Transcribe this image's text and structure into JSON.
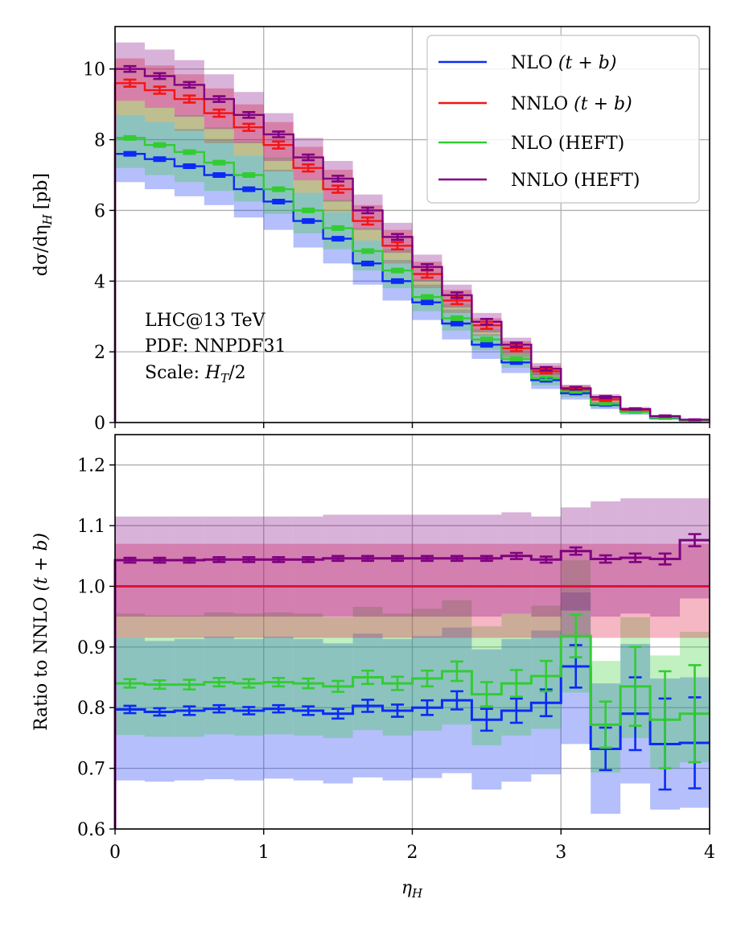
{
  "chart_data": [
    {
      "id": "top",
      "type": "step",
      "ylabel": "dσ/dη",
      "ylabel_sub": "H",
      "ylabel_unit": "[pb]",
      "xlim": [
        0,
        4
      ],
      "ylim": [
        0,
        11.2
      ],
      "yticks": [
        0,
        2,
        4,
        6,
        8,
        10
      ],
      "grid": true,
      "annotation": [
        "LHC@13 TeV",
        "PDF: NNPDF31",
        "Scale: "
      ],
      "annotation_scale_expr": "H",
      "annotation_scale_sub": "T",
      "annotation_scale_tail": "/2",
      "legend_position": "top-right",
      "bin_edges": [
        0,
        0.2,
        0.4,
        0.6,
        0.8,
        1.0,
        1.2,
        1.4,
        1.6,
        1.8,
        2.0,
        2.2,
        2.4,
        2.6,
        2.8,
        3.0,
        3.2,
        3.4,
        3.6,
        3.8,
        4.0
      ],
      "series": [
        {
          "name": "NLO",
          "name_tail": "(t + b)",
          "color": "#0a2bf5",
          "values": [
            7.6,
            7.45,
            7.25,
            7.0,
            6.6,
            6.25,
            5.7,
            5.2,
            4.5,
            4.0,
            3.4,
            2.8,
            2.2,
            1.7,
            1.2,
            0.83,
            0.5,
            0.3,
            0.12,
            0.06
          ],
          "band_lo": [
            6.8,
            6.6,
            6.4,
            6.15,
            5.8,
            5.45,
            4.95,
            4.5,
            3.9,
            3.45,
            2.9,
            2.35,
            1.8,
            1.4,
            0.95,
            0.65,
            0.38,
            0.22,
            0.08,
            0.04
          ],
          "band_hi": [
            8.7,
            8.5,
            8.3,
            8.0,
            7.55,
            7.15,
            6.5,
            5.95,
            5.15,
            4.6,
            3.9,
            3.2,
            2.5,
            1.95,
            1.4,
            0.95,
            0.6,
            0.36,
            0.15,
            0.08
          ],
          "err": [
            0.05,
            0.05,
            0.05,
            0.05,
            0.05,
            0.05,
            0.05,
            0.05,
            0.05,
            0.05,
            0.05,
            0.05,
            0.05,
            0.04,
            0.04,
            0.03,
            0.02,
            0.02,
            0.01,
            0.01
          ]
        },
        {
          "name": "NNLO",
          "name_tail": "(t + b)",
          "color": "#f51414",
          "values": [
            9.6,
            9.4,
            9.15,
            8.75,
            8.35,
            7.85,
            7.2,
            6.6,
            5.7,
            5.0,
            4.2,
            3.45,
            2.75,
            2.1,
            1.45,
            0.93,
            0.65,
            0.35,
            0.16,
            0.07
          ],
          "band_lo": [
            8.7,
            8.5,
            8.25,
            7.9,
            7.55,
            7.1,
            6.5,
            5.95,
            5.15,
            4.5,
            3.8,
            3.1,
            2.45,
            1.85,
            1.25,
            0.8,
            0.55,
            0.3,
            0.13,
            0.05
          ],
          "band_hi": [
            10.3,
            10.1,
            9.85,
            9.45,
            9.0,
            8.5,
            7.8,
            7.15,
            6.15,
            5.45,
            4.55,
            3.75,
            2.95,
            2.3,
            1.6,
            1.05,
            0.72,
            0.4,
            0.18,
            0.09
          ],
          "err": [
            0.1,
            0.1,
            0.1,
            0.1,
            0.1,
            0.1,
            0.1,
            0.1,
            0.1,
            0.1,
            0.1,
            0.1,
            0.1,
            0.08,
            0.06,
            0.05,
            0.04,
            0.03,
            0.02,
            0.01
          ]
        },
        {
          "name": "NLO (HEFT)",
          "name_tail": "",
          "color": "#33cc33",
          "values": [
            8.05,
            7.85,
            7.65,
            7.35,
            7.0,
            6.6,
            6.0,
            5.5,
            4.85,
            4.3,
            3.55,
            2.95,
            2.35,
            1.8,
            1.25,
            0.88,
            0.53,
            0.3,
            0.13,
            0.06
          ],
          "band_lo": [
            7.2,
            7.0,
            6.8,
            6.55,
            6.25,
            5.9,
            5.35,
            4.9,
            4.3,
            3.8,
            3.15,
            2.6,
            2.05,
            1.55,
            1.05,
            0.72,
            0.42,
            0.24,
            0.1,
            0.04
          ],
          "band_hi": [
            9.1,
            8.9,
            8.7,
            8.35,
            7.95,
            7.5,
            6.85,
            6.3,
            5.5,
            4.9,
            4.05,
            3.35,
            2.65,
            2.05,
            1.45,
            1.0,
            0.62,
            0.36,
            0.16,
            0.08
          ],
          "err": [
            0.05,
            0.05,
            0.05,
            0.05,
            0.05,
            0.05,
            0.05,
            0.05,
            0.05,
            0.05,
            0.05,
            0.05,
            0.05,
            0.04,
            0.04,
            0.03,
            0.02,
            0.02,
            0.01,
            0.01
          ]
        },
        {
          "name": "NNLO (HEFT)",
          "name_tail": "",
          "color": "#800080",
          "values": [
            10.0,
            9.8,
            9.55,
            9.15,
            8.7,
            8.15,
            7.5,
            6.9,
            6.0,
            5.25,
            4.4,
            3.6,
            2.85,
            2.2,
            1.52,
            0.97,
            0.72,
            0.38,
            0.18,
            0.08
          ],
          "band_lo": [
            9.1,
            8.9,
            8.65,
            8.3,
            7.9,
            7.4,
            6.85,
            6.25,
            5.45,
            4.8,
            4.0,
            3.25,
            2.55,
            1.95,
            1.35,
            0.85,
            0.62,
            0.32,
            0.15,
            0.06
          ],
          "band_hi": [
            10.75,
            10.55,
            10.25,
            9.85,
            9.35,
            8.75,
            8.05,
            7.4,
            6.45,
            5.65,
            4.75,
            3.9,
            3.1,
            2.4,
            1.68,
            1.07,
            0.8,
            0.44,
            0.21,
            0.1
          ],
          "err": [
            0.08,
            0.08,
            0.08,
            0.08,
            0.08,
            0.08,
            0.08,
            0.08,
            0.08,
            0.08,
            0.08,
            0.08,
            0.08,
            0.06,
            0.05,
            0.04,
            0.03,
            0.02,
            0.02,
            0.01
          ]
        }
      ]
    },
    {
      "id": "bottom",
      "type": "step",
      "ylabel": "Ratio to NNLO",
      "ylabel_tail": "(t + b)",
      "xlabel": "η",
      "xlabel_sub": "H",
      "xlim": [
        0,
        4
      ],
      "ylim": [
        0.6,
        1.25
      ],
      "yticks": [
        0.6,
        0.7,
        0.8,
        0.9,
        1.0,
        1.1,
        1.2
      ],
      "ytick_labels": [
        "0.6",
        "0.7",
        "0.8",
        "0.9",
        "1.0",
        "1.1",
        "1.2"
      ],
      "xticks": [
        0,
        1,
        2,
        3,
        4
      ],
      "xtick_labels": [
        "0",
        "1",
        "2",
        "3",
        "4"
      ],
      "grid": true,
      "bin_edges": [
        0,
        0.2,
        0.4,
        0.6,
        0.8,
        1.0,
        1.2,
        1.4,
        1.6,
        1.8,
        2.0,
        2.2,
        2.4,
        2.6,
        2.8,
        3.0,
        3.2,
        3.4,
        3.6,
        3.8,
        4.0
      ],
      "series": [
        {
          "name": "NLO (t+b) ratio",
          "color": "#0a2bf5",
          "values": [
            0.797,
            0.793,
            0.795,
            0.798,
            0.795,
            0.798,
            0.795,
            0.79,
            0.803,
            0.795,
            0.8,
            0.812,
            0.78,
            0.795,
            0.808,
            0.868,
            0.732,
            0.79,
            0.74,
            0.742
          ],
          "err": [
            0.006,
            0.006,
            0.007,
            0.006,
            0.006,
            0.006,
            0.007,
            0.008,
            0.01,
            0.01,
            0.012,
            0.015,
            0.018,
            0.02,
            0.022,
            0.035,
            0.035,
            0.06,
            0.075,
            0.075
          ],
          "band_lo": [
            0.68,
            0.678,
            0.68,
            0.682,
            0.68,
            0.683,
            0.68,
            0.675,
            0.685,
            0.68,
            0.684,
            0.692,
            0.665,
            0.678,
            0.69,
            0.74,
            0.625,
            0.675,
            0.632,
            0.635
          ],
          "band_hi": [
            0.915,
            0.91,
            0.913,
            0.917,
            0.913,
            0.917,
            0.913,
            0.906,
            0.922,
            0.913,
            0.918,
            0.932,
            0.896,
            0.913,
            0.927,
            0.99,
            0.84,
            0.905,
            0.848,
            0.85
          ]
        },
        {
          "name": "NLO (HEFT) ratio",
          "color": "#33cc33",
          "values": [
            0.84,
            0.838,
            0.838,
            0.842,
            0.84,
            0.842,
            0.84,
            0.835,
            0.85,
            0.84,
            0.848,
            0.86,
            0.822,
            0.84,
            0.852,
            0.918,
            0.772,
            0.835,
            0.78,
            0.79
          ],
          "err": [
            0.007,
            0.007,
            0.008,
            0.007,
            0.007,
            0.007,
            0.008,
            0.009,
            0.011,
            0.011,
            0.013,
            0.016,
            0.02,
            0.022,
            0.025,
            0.035,
            0.038,
            0.065,
            0.08,
            0.08
          ],
          "band_lo": [
            0.755,
            0.752,
            0.752,
            0.756,
            0.754,
            0.756,
            0.754,
            0.75,
            0.763,
            0.754,
            0.762,
            0.772,
            0.738,
            0.754,
            0.765,
            0.825,
            0.693,
            0.75,
            0.7,
            0.71
          ],
          "band_hi": [
            0.955,
            0.952,
            0.952,
            0.957,
            0.955,
            0.957,
            0.955,
            0.949,
            0.966,
            0.955,
            0.963,
            0.977,
            0.934,
            0.955,
            0.968,
            1.043,
            0.877,
            0.949,
            0.886,
            0.925
          ]
        },
        {
          "name": "NNLO (t+b) ratio",
          "color": "#e0103c",
          "values": [
            1.0,
            1.0,
            1.0,
            1.0,
            1.0,
            1.0,
            1.0,
            1.0,
            1.0,
            1.0,
            1.0,
            1.0,
            1.0,
            1.0,
            1.0,
            1.0,
            1.0,
            1.0,
            1.0,
            1.0
          ],
          "err": [
            0,
            0,
            0,
            0,
            0,
            0,
            0,
            0,
            0,
            0,
            0,
            0,
            0,
            0,
            0,
            0,
            0,
            0,
            0,
            0
          ],
          "band_lo": [
            0.915,
            0.915,
            0.915,
            0.915,
            0.915,
            0.915,
            0.915,
            0.915,
            0.915,
            0.915,
            0.915,
            0.915,
            0.915,
            0.915,
            0.915,
            0.915,
            0.915,
            0.915,
            0.915,
            0.915
          ],
          "band_hi": [
            1.07,
            1.07,
            1.07,
            1.07,
            1.07,
            1.07,
            1.07,
            1.07,
            1.07,
            1.07,
            1.07,
            1.07,
            1.07,
            1.07,
            1.07,
            1.07,
            1.07,
            1.07,
            1.07,
            1.07
          ]
        },
        {
          "name": "NNLO (HEFT) ratio",
          "color": "#800080",
          "values": [
            1.043,
            1.043,
            1.043,
            1.044,
            1.044,
            1.044,
            1.044,
            1.046,
            1.046,
            1.046,
            1.046,
            1.046,
            1.046,
            1.05,
            1.044,
            1.058,
            1.045,
            1.047,
            1.045,
            1.076
          ],
          "err": [
            0.004,
            0.004,
            0.004,
            0.004,
            0.004,
            0.004,
            0.004,
            0.004,
            0.004,
            0.004,
            0.004,
            0.004,
            0.004,
            0.005,
            0.005,
            0.006,
            0.006,
            0.007,
            0.009,
            0.01
          ],
          "band_lo": [
            0.95,
            0.95,
            0.95,
            0.95,
            0.95,
            0.95,
            0.95,
            0.95,
            0.95,
            0.95,
            0.95,
            0.95,
            0.95,
            0.955,
            0.95,
            0.96,
            0.95,
            0.955,
            0.95,
            0.98
          ],
          "band_hi": [
            1.115,
            1.115,
            1.115,
            1.115,
            1.115,
            1.115,
            1.115,
            1.118,
            1.118,
            1.118,
            1.118,
            1.118,
            1.118,
            1.122,
            1.115,
            1.13,
            1.14,
            1.145,
            1.145,
            1.145
          ]
        }
      ]
    }
  ]
}
